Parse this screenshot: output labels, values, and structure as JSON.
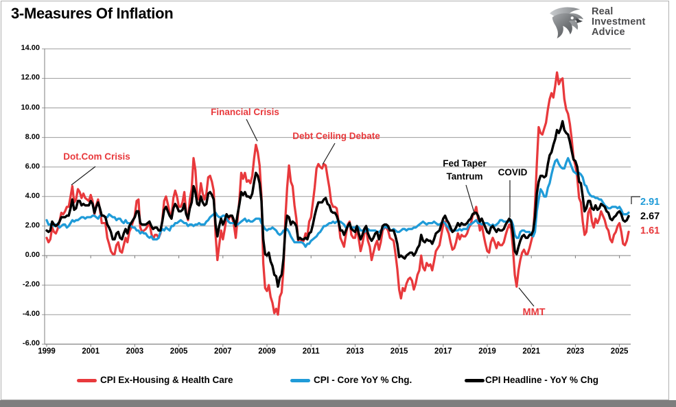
{
  "header": {
    "title": "3-Measures Of Inflation",
    "logo": {
      "line1": "Real",
      "line2": "Investment",
      "line3": "Advice"
    }
  },
  "chart_data": {
    "type": "line",
    "title": "3-Measures Of Inflation",
    "xlabel": "",
    "ylabel": "",
    "x_interval": "monthly",
    "x_range": [
      "1999-01",
      "2025-06"
    ],
    "ylim": [
      -6,
      14
    ],
    "y_tick_step": 2,
    "grid": "horizontal",
    "legend_position": "bottom",
    "y_tick_labels": [
      "14.00",
      "12.00",
      "10.00",
      "8.00",
      "6.00",
      "4.00",
      "2.00",
      "0.00",
      "-2.00",
      "-4.00",
      "-6.00"
    ],
    "x_tick_labels": [
      "1999",
      "2001",
      "2003",
      "2005",
      "2007",
      "2009",
      "2011",
      "2013",
      "2015",
      "2017",
      "2019",
      "2021",
      "2023",
      "2025"
    ],
    "series": [
      {
        "name": "CPI Ex-Housing & Health Care",
        "color": "#e8393c",
        "width": 3.3,
        "end_value": "1.61",
        "values": [
          1.2,
          0.9,
          1.1,
          1.9,
          1.6,
          1.5,
          1.8,
          2.3,
          2.9,
          2.8,
          3.0,
          3.3,
          3.3,
          4.0,
          4.7,
          3.6,
          3.8,
          4.5,
          4.3,
          3.9,
          4.2,
          3.9,
          3.8,
          3.7,
          4.1,
          3.7,
          2.8,
          3.4,
          3.8,
          3.1,
          2.2,
          2.2,
          2.2,
          1.2,
          0.8,
          0.3,
          0.1,
          0.1,
          0.7,
          0.9,
          0.3,
          0.2,
          0.7,
          1.2,
          0.9,
          1.6,
          1.9,
          2.3,
          2.7,
          3.7,
          3.8,
          1.9,
          1.6,
          1.7,
          1.8,
          2.0,
          2.2,
          1.5,
          1.1,
          1.4,
          1.4,
          1.2,
          1.5,
          2.4,
          3.7,
          4.0,
          3.5,
          2.9,
          2.6,
          3.9,
          4.4,
          4.0,
          3.3,
          3.3,
          3.6,
          4.3,
          2.9,
          2.4,
          3.8,
          4.5,
          6.6,
          5.8,
          3.9,
          3.8,
          4.9,
          4.2,
          3.8,
          4.2,
          5.3,
          5.4,
          5.0,
          4.4,
          1.4,
          -0.3,
          0.7,
          1.7,
          1.1,
          1.8,
          2.6,
          2.4,
          2.7,
          2.6,
          2.1,
          1.2,
          2.5,
          3.8,
          5.6,
          5.2,
          5.6,
          5.0,
          5.1,
          4.9,
          5.4,
          6.6,
          7.5,
          7.0,
          6.1,
          4.0,
          -0.5,
          -2.2,
          -2.4,
          -2.0,
          -2.8,
          -3.2,
          -3.9,
          -3.6,
          -4.0,
          -2.8,
          -2.5,
          -0.9,
          2.5,
          4.6,
          6.1,
          5.0,
          4.7,
          3.4,
          2.5,
          1.0,
          1.2,
          0.9,
          1.0,
          1.5,
          1.3,
          2.3,
          2.6,
          3.6,
          4.6,
          5.9,
          6.2,
          6.0,
          5.9,
          6.2,
          6.1,
          5.3,
          4.6,
          3.6,
          3.3,
          3.3,
          3.2,
          2.3,
          1.2,
          0.9,
          0.6,
          1.4,
          2.1,
          2.3,
          1.4,
          1.2,
          1.2,
          1.9,
          1.1,
          0.3,
          0.8,
          1.5,
          1.8,
          1.0,
          0.6,
          -0.3,
          0.2,
          0.7,
          1.0,
          0.4,
          0.9,
          1.7,
          1.9,
          1.9,
          1.7,
          1.2,
          1.1,
          1.0,
          0.1,
          -0.9,
          -2.3,
          -2.9,
          -2.2,
          -2.4,
          -1.9,
          -1.6,
          -1.5,
          -1.7,
          -2.3,
          -1.9,
          -1.3,
          -1.0,
          0.0,
          -0.8,
          -1.0,
          -0.5,
          -0.7,
          -0.6,
          -1.0,
          -0.4,
          0.3,
          0.5,
          0.7,
          1.4,
          2.1,
          2.3,
          1.8,
          1.5,
          0.9,
          0.4,
          0.5,
          0.9,
          1.5,
          1.1,
          1.4,
          1.3,
          1.3,
          1.5,
          1.9,
          2.1,
          2.7,
          2.9,
          3.3,
          2.5,
          1.7,
          2.1,
          1.4,
          0.8,
          0.3,
          0.2,
          0.9,
          1.2,
          0.9,
          0.5,
          0.9,
          0.7,
          0.7,
          0.9,
          1.4,
          1.8,
          2.1,
          1.8,
          0.5,
          -1.3,
          -2.1,
          -1.0,
          -0.3,
          0.2,
          0.4,
          0.1,
          0.1,
          0.5,
          1.0,
          1.5,
          3.4,
          6.2,
          8.7,
          8.3,
          8.2,
          8.6,
          9.0,
          9.9,
          10.6,
          11.0,
          10.7,
          11.5,
          12.4,
          11.6,
          11.9,
          12.0,
          10.6,
          9.9,
          9.6,
          8.9,
          7.9,
          6.6,
          6.1,
          5.3,
          3.9,
          3.6,
          2.3,
          1.4,
          1.6,
          2.9,
          3.2,
          2.3,
          1.9,
          2.5,
          2.2,
          2.5,
          3.0,
          2.7,
          2.4,
          1.9,
          1.7,
          1.1,
          0.9,
          1.4,
          1.6,
          2.0,
          2.2,
          1.6,
          0.8,
          0.7,
          1.0,
          1.61
        ]
      },
      {
        "name": "CPI - Core YoY % Chg.",
        "color": "#1f9bd8",
        "width": 3.3,
        "end_value": "2.91",
        "values": [
          2.4,
          2.1,
          2.1,
          2.2,
          2.0,
          2.1,
          2.1,
          1.9,
          2.0,
          2.1,
          2.1,
          1.9,
          2.0,
          2.2,
          2.4,
          2.3,
          2.4,
          2.4,
          2.5,
          2.6,
          2.6,
          2.5,
          2.6,
          2.6,
          2.6,
          2.7,
          2.7,
          2.6,
          2.5,
          2.7,
          2.7,
          2.7,
          2.6,
          2.6,
          2.8,
          2.7,
          2.6,
          2.6,
          2.4,
          2.5,
          2.5,
          2.3,
          2.2,
          2.4,
          2.2,
          2.2,
          2.0,
          1.9,
          1.9,
          1.7,
          1.7,
          1.5,
          1.6,
          1.5,
          1.5,
          1.3,
          1.2,
          1.3,
          1.1,
          1.1,
          1.1,
          1.2,
          1.6,
          1.8,
          1.7,
          1.9,
          1.8,
          1.7,
          2.0,
          2.0,
          2.2,
          2.2,
          2.3,
          2.4,
          2.3,
          2.2,
          2.2,
          2.0,
          2.1,
          2.1,
          2.0,
          2.1,
          2.1,
          2.2,
          2.1,
          2.1,
          2.1,
          2.3,
          2.4,
          2.6,
          2.7,
          2.8,
          2.9,
          2.7,
          2.6,
          2.6,
          2.7,
          2.7,
          2.5,
          2.3,
          2.2,
          2.2,
          2.2,
          2.1,
          2.1,
          2.2,
          2.3,
          2.4,
          2.5,
          2.3,
          2.4,
          2.3,
          2.3,
          2.4,
          2.5,
          2.5,
          2.5,
          2.2,
          2.0,
          1.8,
          1.7,
          1.8,
          1.8,
          1.9,
          1.8,
          1.7,
          1.5,
          1.4,
          1.5,
          1.7,
          1.7,
          1.8,
          1.6,
          1.3,
          1.1,
          0.9,
          0.9,
          0.9,
          0.9,
          0.9,
          0.8,
          0.6,
          0.8,
          0.8,
          1.0,
          1.1,
          1.2,
          1.3,
          1.5,
          1.6,
          1.8,
          2.0,
          2.0,
          2.1,
          2.2,
          2.2,
          2.3,
          2.2,
          2.3,
          2.3,
          2.3,
          2.2,
          2.1,
          1.9,
          2.0,
          2.0,
          1.9,
          1.9,
          1.9,
          2.0,
          1.9,
          1.7,
          1.7,
          1.6,
          1.7,
          1.8,
          1.7,
          1.7,
          1.7,
          1.7,
          1.6,
          1.6,
          1.7,
          1.8,
          2.0,
          1.9,
          1.9,
          1.7,
          1.7,
          1.8,
          1.7,
          1.6,
          1.6,
          1.7,
          1.8,
          1.8,
          1.7,
          1.8,
          1.8,
          1.8,
          1.9,
          1.9,
          2.0,
          2.1,
          2.2,
          2.3,
          2.2,
          2.1,
          2.2,
          2.2,
          2.2,
          2.3,
          2.2,
          2.1,
          2.1,
          2.2,
          2.3,
          2.2,
          2.0,
          1.9,
          1.7,
          1.7,
          1.7,
          1.7,
          1.7,
          1.8,
          1.7,
          1.8,
          1.8,
          1.8,
          2.1,
          2.1,
          2.2,
          2.3,
          2.4,
          2.2,
          2.2,
          2.1,
          2.2,
          2.2,
          2.2,
          2.1,
          2.0,
          2.1,
          2.0,
          2.1,
          2.2,
          2.4,
          2.4,
          2.3,
          2.3,
          2.3,
          2.3,
          2.4,
          2.1,
          1.4,
          1.2,
          1.2,
          1.6,
          1.7,
          1.7,
          1.6,
          1.6,
          1.6,
          1.4,
          1.3,
          1.6,
          3.0,
          3.8,
          4.5,
          4.3,
          4.0,
          4.0,
          4.6,
          4.9,
          5.5,
          6.0,
          6.4,
          6.5,
          6.2,
          6.0,
          5.9,
          5.9,
          6.3,
          6.6,
          6.3,
          6.0,
          5.7,
          5.6,
          5.5,
          5.6,
          5.5,
          5.3,
          4.8,
          4.7,
          4.3,
          4.1,
          4.0,
          4.0,
          3.9,
          3.9,
          3.8,
          3.8,
          3.6,
          3.4,
          3.3,
          3.2,
          3.2,
          3.3,
          3.3,
          3.3,
          3.2,
          3.3,
          3.1,
          2.8,
          2.8,
          2.8,
          2.91
        ]
      },
      {
        "name": "CPI Headline - YoY % Chg",
        "color": "#000000",
        "width": 3.5,
        "end_value": "2.67",
        "values": [
          1.7,
          1.6,
          1.7,
          2.3,
          2.1,
          2.0,
          2.1,
          2.3,
          2.6,
          2.6,
          2.6,
          2.7,
          2.7,
          3.2,
          3.8,
          3.1,
          3.2,
          3.7,
          3.7,
          3.4,
          3.5,
          3.4,
          3.4,
          3.4,
          3.7,
          3.5,
          2.9,
          3.3,
          3.6,
          3.2,
          2.7,
          2.7,
          2.6,
          2.1,
          1.9,
          1.6,
          1.1,
          1.1,
          1.5,
          1.6,
          1.2,
          1.1,
          1.5,
          1.8,
          1.5,
          2.0,
          2.2,
          2.4,
          2.6,
          3.0,
          3.0,
          2.2,
          2.1,
          2.1,
          2.1,
          2.2,
          2.3,
          2.0,
          1.8,
          1.9,
          1.9,
          1.7,
          1.7,
          2.3,
          3.1,
          3.3,
          3.0,
          2.7,
          2.5,
          3.2,
          3.5,
          3.3,
          3.0,
          3.0,
          3.1,
          3.5,
          2.8,
          2.5,
          3.2,
          3.6,
          4.7,
          4.3,
          3.5,
          3.4,
          4.0,
          3.6,
          3.4,
          3.5,
          4.2,
          4.3,
          4.1,
          3.8,
          2.1,
          1.3,
          2.0,
          2.5,
          2.1,
          2.4,
          2.8,
          2.6,
          2.7,
          2.7,
          2.4,
          2.0,
          2.8,
          3.5,
          4.3,
          4.1,
          4.3,
          4.0,
          4.0,
          3.9,
          4.2,
          5.0,
          5.6,
          5.4,
          4.9,
          3.7,
          1.1,
          0.1,
          0.0,
          0.2,
          -0.4,
          -0.7,
          -1.3,
          -1.4,
          -2.1,
          -1.5,
          -1.3,
          -0.2,
          1.8,
          2.7,
          2.6,
          2.1,
          2.3,
          2.2,
          2.0,
          1.1,
          1.2,
          1.1,
          1.1,
          1.2,
          1.1,
          1.5,
          1.6,
          2.1,
          2.7,
          3.2,
          3.6,
          3.6,
          3.6,
          3.8,
          3.9,
          3.5,
          3.4,
          3.0,
          2.9,
          2.9,
          2.7,
          2.3,
          1.7,
          1.7,
          1.4,
          1.7,
          2.0,
          2.2,
          1.8,
          1.7,
          1.6,
          2.0,
          1.5,
          1.1,
          1.4,
          1.8,
          2.0,
          1.5,
          1.2,
          1.0,
          1.2,
          1.5,
          1.6,
          1.1,
          1.5,
          2.0,
          2.1,
          2.1,
          2.0,
          1.7,
          1.7,
          1.7,
          1.3,
          0.8,
          -0.1,
          0.0,
          -0.1,
          -0.2,
          0.0,
          0.1,
          0.2,
          0.2,
          0.0,
          0.2,
          0.5,
          0.7,
          1.4,
          1.0,
          0.9,
          1.1,
          1.0,
          1.0,
          0.8,
          1.1,
          1.5,
          1.6,
          1.7,
          2.1,
          2.5,
          2.7,
          2.4,
          2.2,
          1.9,
          1.6,
          1.7,
          1.9,
          2.2,
          2.0,
          2.2,
          2.1,
          2.1,
          2.2,
          2.4,
          2.5,
          2.8,
          2.9,
          2.9,
          2.7,
          2.3,
          2.5,
          2.2,
          1.9,
          1.6,
          1.5,
          1.9,
          2.0,
          1.8,
          1.6,
          1.8,
          1.7,
          1.7,
          1.8,
          2.1,
          2.3,
          2.5,
          2.3,
          1.5,
          0.3,
          0.1,
          0.6,
          1.0,
          1.3,
          1.4,
          1.2,
          1.2,
          1.4,
          1.4,
          1.7,
          2.6,
          4.2,
          5.0,
          5.4,
          5.4,
          5.3,
          5.4,
          6.2,
          6.8,
          7.0,
          7.5,
          7.9,
          8.5,
          8.3,
          8.6,
          9.1,
          8.5,
          8.3,
          8.2,
          7.7,
          7.1,
          6.5,
          6.4,
          6.0,
          5.0,
          4.9,
          4.0,
          3.0,
          3.2,
          3.7,
          3.7,
          3.2,
          3.1,
          3.4,
          3.1,
          3.2,
          3.5,
          3.4,
          3.3,
          3.0,
          2.9,
          2.5,
          2.4,
          2.6,
          2.7,
          2.9,
          3.0,
          2.8,
          2.4,
          2.3,
          2.4,
          2.67
        ]
      }
    ],
    "annotations": [
      {
        "id": "dotcom",
        "text": "Dot.Com Crisis",
        "color": "#e8393c"
      },
      {
        "id": "financial",
        "text": "Financial Crisis",
        "color": "#e8393c"
      },
      {
        "id": "debt",
        "text": "Debt Ceiling Debate",
        "color": "#e8393c"
      },
      {
        "id": "fedtaper",
        "text": "Fed Taper Tantrum",
        "color": "#000000"
      },
      {
        "id": "covid",
        "text": "COVID",
        "color": "#000000"
      },
      {
        "id": "mmt",
        "text": "MMT",
        "color": "#e8393c"
      }
    ],
    "end_labels": [
      {
        "text": "2.91",
        "color": "#1f9bd8"
      },
      {
        "text": "2.67",
        "color": "#000000"
      },
      {
        "text": "1.61",
        "color": "#e8393c"
      }
    ]
  }
}
